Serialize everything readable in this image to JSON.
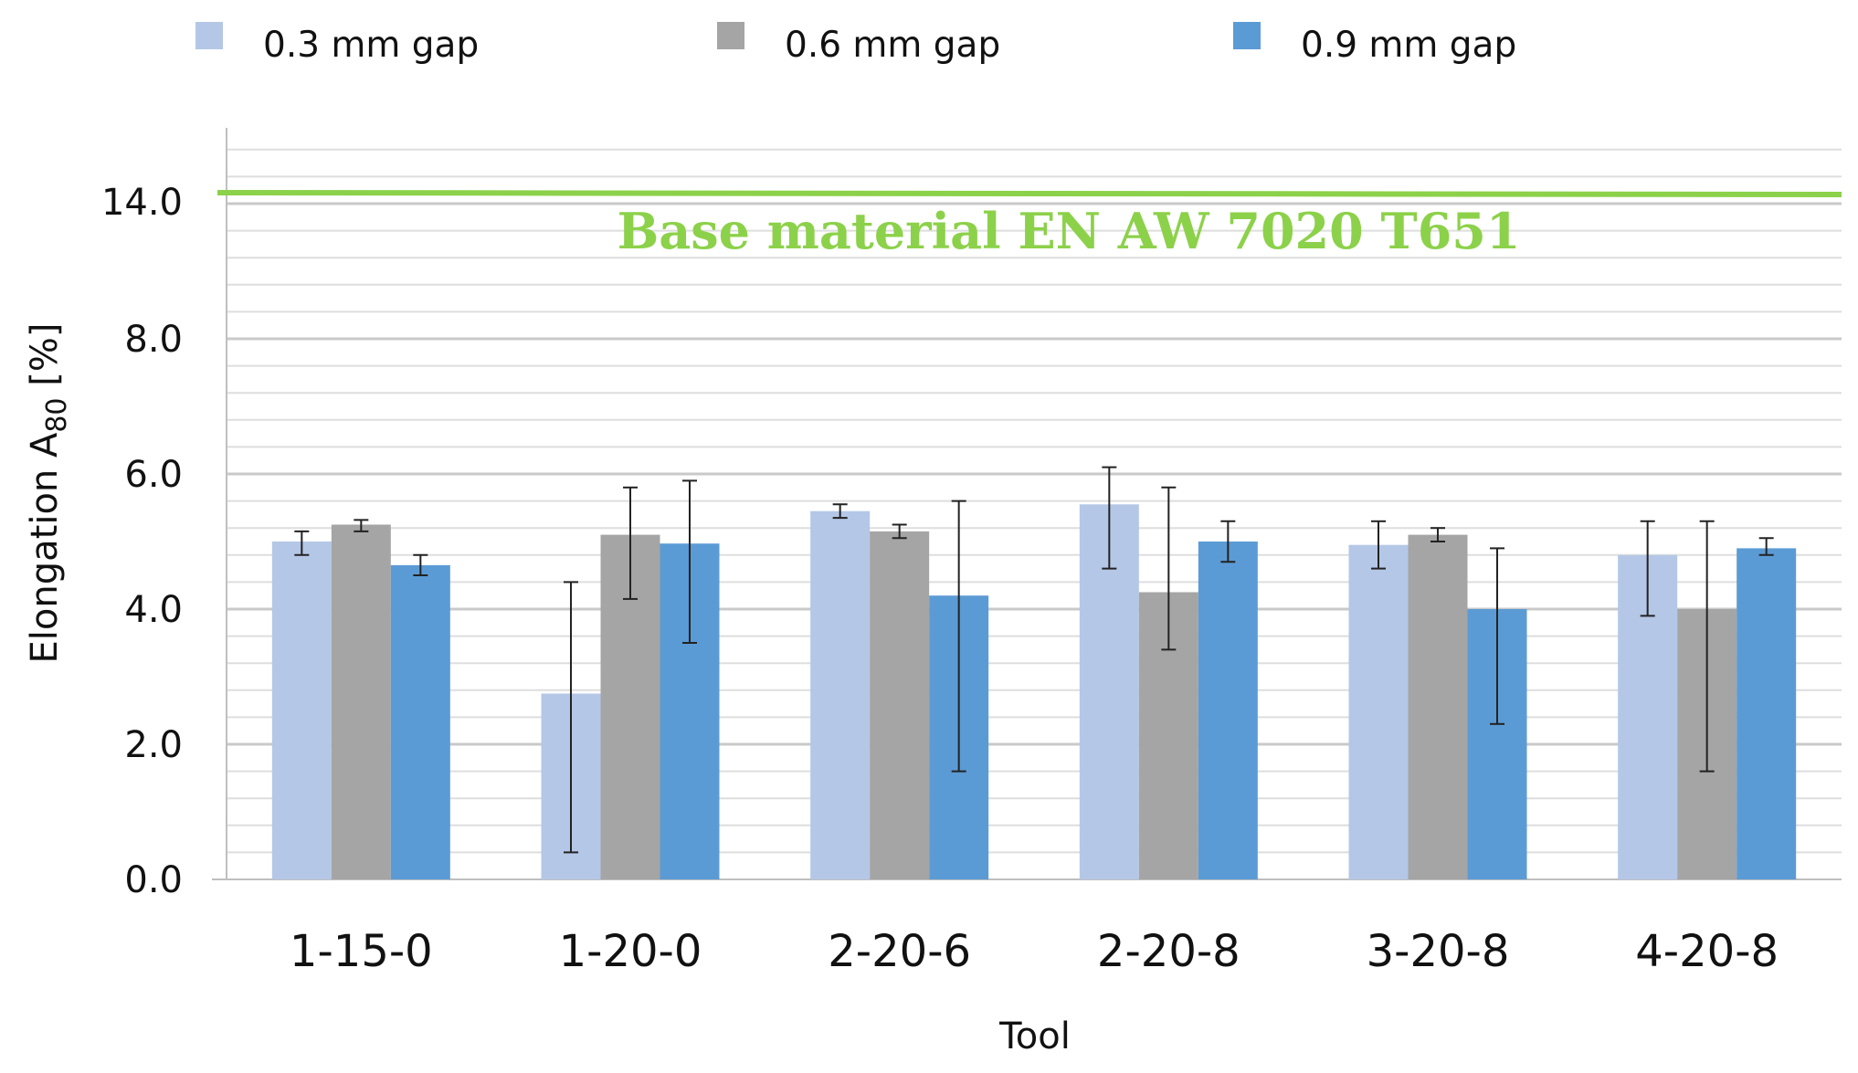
{
  "chart_data": {
    "type": "bar",
    "title": "",
    "xlabel": "Tool",
    "ylabel_main": "Elongation A",
    "ylabel_sub": "80",
    "ylabel_unit": " [%]",
    "categories": [
      "1-15-0",
      "1-20-0",
      "2-20-6",
      "2-20-8",
      "3-20-8",
      "4-20-8"
    ],
    "series": [
      {
        "name": "0.3 mm gap",
        "color": "#b4c7e7",
        "values": [
          5.0,
          2.75,
          5.45,
          5.55,
          4.95,
          4.8
        ],
        "err_low": [
          4.8,
          0.4,
          5.35,
          4.6,
          4.6,
          3.9
        ],
        "err_high": [
          5.15,
          4.4,
          5.55,
          6.1,
          5.3,
          5.3
        ]
      },
      {
        "name": "0.6 mm gap",
        "color": "#a5a5a5",
        "values": [
          5.25,
          5.1,
          5.15,
          4.25,
          5.1,
          4.0
        ],
        "err_low": [
          5.15,
          4.15,
          5.05,
          3.4,
          5.0,
          1.6
        ],
        "err_high": [
          5.32,
          5.8,
          5.25,
          5.8,
          5.2,
          5.3
        ]
      },
      {
        "name": "0.9 mm gap",
        "color": "#5b9bd5",
        "values": [
          4.65,
          4.97,
          4.2,
          5.0,
          4.0,
          4.9
        ],
        "err_low": [
          4.5,
          3.5,
          1.6,
          4.7,
          2.3,
          4.8
        ],
        "err_high": [
          4.8,
          5.9,
          5.6,
          5.3,
          4.9,
          5.05
        ]
      }
    ],
    "ytick_labels": [
      "0.0",
      "2.0",
      "4.0",
      "6.0",
      "8.0",
      "14.0"
    ],
    "reference_line": {
      "label": "Base material EN AW 7020 T651",
      "value": 14.0,
      "color": "#8cd14a"
    },
    "gridlines": true,
    "legend_position": "top"
  }
}
